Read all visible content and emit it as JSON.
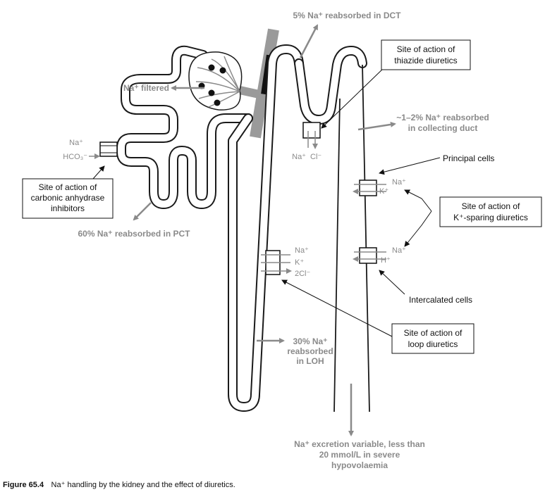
{
  "colors": {
    "grey_label": "#8a8a8a",
    "line": "#1a1a1a",
    "background": "#ffffff"
  },
  "labels": {
    "dct_reabsorbed": "5% Na⁺ reabsorbed in DCT",
    "na_filtered": "Na⁺ filtered",
    "na_pct_site": "Na⁺",
    "hco3": "HCO₃⁻",
    "na_dct": "Na⁺",
    "cl_dct": "Cl⁻",
    "collecting_duct_line1": "~1–2% Na⁺ reabsorbed",
    "collecting_duct_line2": "in collecting duct",
    "principal_cells": "Principal cells",
    "principal_na": "Na⁺",
    "principal_k": "K⁺",
    "intercalated_na": "Na⁺",
    "intercalated_h": "H⁺",
    "intercalated_cells": "Intercalated cells",
    "pct_reabsorbed": "60% Na⁺ reabsorbed in PCT",
    "loh_na": "Na⁺",
    "loh_k": "K⁺",
    "loh_cl": "2Cl⁻",
    "loh_line1": "30% Na⁺",
    "loh_line2": "reabsorbed",
    "loh_line3": "in LOH",
    "excretion_line1": "Na⁺ excretion variable, less than",
    "excretion_line2": "20 mmol/L in severe",
    "excretion_line3": "hypovolaemia"
  },
  "boxes": {
    "thiazide_line1": "Site of action of",
    "thiazide_line2": "thiazide diuretics",
    "cai_line1": "Site of action of",
    "cai_line2": "carbonic anhydrase",
    "cai_line3": "inhibitors",
    "ksparing_line1": "Site of action of",
    "ksparing_line2": "K⁺-sparing diuretics",
    "loop_line1": "Site of action of",
    "loop_line2": "loop diuretics"
  },
  "caption": {
    "figure_number": "Figure 65.4",
    "text": "Na⁺ handling by the kidney and the effect of diuretics."
  }
}
